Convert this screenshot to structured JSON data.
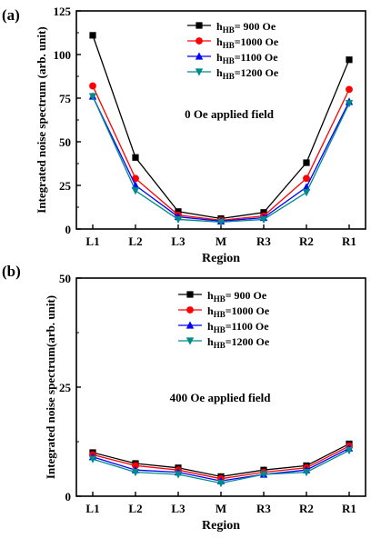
{
  "chart_data": [
    {
      "type": "line",
      "panel_label": "(a)",
      "annotation": "0 Oe applied field",
      "xlabel": "Region",
      "ylabel": "Integrated noise spectrum (arb. unit)",
      "categories": [
        "L1",
        "L2",
        "L3",
        "M",
        "R3",
        "R2",
        "R1"
      ],
      "ylim": [
        0,
        125
      ],
      "yticks": [
        "0",
        "25",
        "50",
        "75",
        "100",
        "125"
      ],
      "legend_position": "top-center",
      "series": [
        {
          "name": "h_HB= 900 Oe",
          "label_main": "h",
          "label_sub": "HB",
          "label_rest": "= 900 Oe",
          "color": "#000000",
          "marker": "square",
          "values": [
            111,
            41,
            10,
            6,
            9.5,
            38,
            97
          ]
        },
        {
          "name": "h_HB=1000 Oe",
          "label_main": "h",
          "label_sub": "HB",
          "label_rest": "=1000 Oe",
          "color": "#ff0000",
          "marker": "circle",
          "values": [
            82,
            29,
            8,
            5,
            7.5,
            29,
            80
          ]
        },
        {
          "name": "h_HB=1100 Oe",
          "label_main": "h",
          "label_sub": "HB",
          "label_rest": "=1100 Oe",
          "color": "#0000ff",
          "marker": "triangle-up",
          "values": [
            76,
            25,
            7,
            4.5,
            6.5,
            24,
            73
          ]
        },
        {
          "name": "h_HB=1200 Oe",
          "label_main": "h",
          "label_sub": "HB",
          "label_rest": "=1200 Oe",
          "color": "#008b8b",
          "marker": "triangle-down",
          "values": [
            76,
            22,
            5.5,
            4,
            5.5,
            21,
            72
          ]
        }
      ]
    },
    {
      "type": "line",
      "panel_label": "(b)",
      "annotation": "400 Oe applied field",
      "xlabel": "Region",
      "ylabel": "Integrated noise spectrum(arb. unit)",
      "categories": [
        "L1",
        "L2",
        "L3",
        "M",
        "R3",
        "R2",
        "R1"
      ],
      "ylim": [
        0,
        50
      ],
      "yticks": [
        "0",
        "25",
        "50"
      ],
      "legend_position": "top-center",
      "series": [
        {
          "name": "h_HB= 900 Oe",
          "label_main": "h",
          "label_sub": "HB",
          "label_rest": "= 900 Oe",
          "color": "#000000",
          "marker": "square",
          "values": [
            10,
            7.5,
            6.5,
            4.5,
            6,
            7,
            12
          ]
        },
        {
          "name": "h_HB=1000 Oe",
          "label_main": "h",
          "label_sub": "HB",
          "label_rest": "=1000 Oe",
          "color": "#ff0000",
          "marker": "circle",
          "values": [
            9.5,
            7,
            6,
            4,
            5.5,
            6.5,
            11.5
          ]
        },
        {
          "name": "h_HB=1100 Oe",
          "label_main": "h",
          "label_sub": "HB",
          "label_rest": "=1100 Oe",
          "color": "#0000ff",
          "marker": "triangle-up",
          "values": [
            9,
            6,
            5.5,
            3.5,
            5,
            6,
            11
          ]
        },
        {
          "name": "h_HB=1200 Oe",
          "label_main": "h",
          "label_sub": "HB",
          "label_rest": "=1200 Oe",
          "color": "#008b8b",
          "marker": "triangle-down",
          "values": [
            8.5,
            5.5,
            5,
            3,
            5,
            5.5,
            10.5
          ]
        }
      ]
    }
  ]
}
